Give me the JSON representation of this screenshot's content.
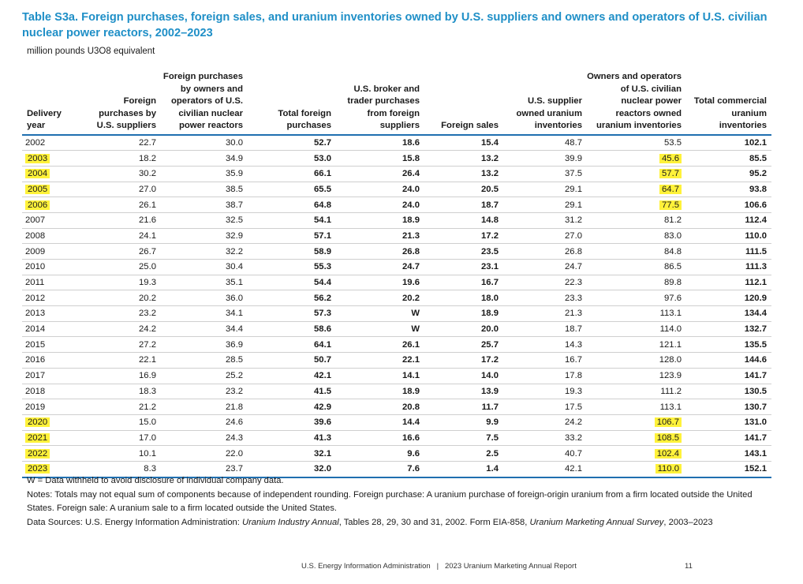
{
  "title": "Table S3a. Foreign purchases, foreign sales, and uranium inventories owned by U.S. suppliers and owners and operators of U.S. civilian nuclear power reactors, 2002–2023",
  "units": "million pounds U3O8 equivalent",
  "headers": {
    "year": "Delivery year",
    "fp_suppliers": "Foreign purchases by U.S. suppliers",
    "fp_owners": "Foreign purchases by owners and operators of U.S. civilian nuclear power reactors",
    "total_fp": "Total foreign purchases",
    "broker": "U.S. broker and trader purchases from foreign suppliers",
    "foreign_sales": "Foreign sales",
    "supplier_inv": "U.S. supplier owned uranium inventories",
    "owner_inv": "Owners and operators of U.S. civilian nuclear power reactors owned uranium inventories",
    "total_inv": "Total commercial uranium inventories"
  },
  "highlight_color": "#fff23a",
  "rows": [
    {
      "year": "2002",
      "c1": "22.7",
      "c2": "30.0",
      "c3": "52.7",
      "c4": "18.6",
      "c5": "15.4",
      "c6": "48.7",
      "c7": "53.5",
      "c8": "102.1",
      "hy": false,
      "hi": false
    },
    {
      "year": "2003",
      "c1": "18.2",
      "c2": "34.9",
      "c3": "53.0",
      "c4": "15.8",
      "c5": "13.2",
      "c6": "39.9",
      "c7": "45.6",
      "c8": "85.5",
      "hy": true,
      "hi": true
    },
    {
      "year": "2004",
      "c1": "30.2",
      "c2": "35.9",
      "c3": "66.1",
      "c4": "26.4",
      "c5": "13.2",
      "c6": "37.5",
      "c7": "57.7",
      "c8": "95.2",
      "hy": true,
      "hi": true
    },
    {
      "year": "2005",
      "c1": "27.0",
      "c2": "38.5",
      "c3": "65.5",
      "c4": "24.0",
      "c5": "20.5",
      "c6": "29.1",
      "c7": "64.7",
      "c8": "93.8",
      "hy": true,
      "hi": true
    },
    {
      "year": "2006",
      "c1": "26.1",
      "c2": "38.7",
      "c3": "64.8",
      "c4": "24.0",
      "c5": "18.7",
      "c6": "29.1",
      "c7": "77.5",
      "c8": "106.6",
      "hy": true,
      "hi": true
    },
    {
      "year": "2007",
      "c1": "21.6",
      "c2": "32.5",
      "c3": "54.1",
      "c4": "18.9",
      "c5": "14.8",
      "c6": "31.2",
      "c7": "81.2",
      "c8": "112.4",
      "hy": false,
      "hi": false
    },
    {
      "year": "2008",
      "c1": "24.1",
      "c2": "32.9",
      "c3": "57.1",
      "c4": "21.3",
      "c5": "17.2",
      "c6": "27.0",
      "c7": "83.0",
      "c8": "110.0",
      "hy": false,
      "hi": false
    },
    {
      "year": "2009",
      "c1": "26.7",
      "c2": "32.2",
      "c3": "58.9",
      "c4": "26.8",
      "c5": "23.5",
      "c6": "26.8",
      "c7": "84.8",
      "c8": "111.5",
      "hy": false,
      "hi": false
    },
    {
      "year": "2010",
      "c1": "25.0",
      "c2": "30.4",
      "c3": "55.3",
      "c4": "24.7",
      "c5": "23.1",
      "c6": "24.7",
      "c7": "86.5",
      "c8": "111.3",
      "hy": false,
      "hi": false
    },
    {
      "year": "2011",
      "c1": "19.3",
      "c2": "35.1",
      "c3": "54.4",
      "c4": "19.6",
      "c5": "16.7",
      "c6": "22.3",
      "c7": "89.8",
      "c8": "112.1",
      "hy": false,
      "hi": false
    },
    {
      "year": "2012",
      "c1": "20.2",
      "c2": "36.0",
      "c3": "56.2",
      "c4": "20.2",
      "c5": "18.0",
      "c6": "23.3",
      "c7": "97.6",
      "c8": "120.9",
      "hy": false,
      "hi": false
    },
    {
      "year": "2013",
      "c1": "23.2",
      "c2": "34.1",
      "c3": "57.3",
      "c4": "W",
      "c5": "18.9",
      "c6": "21.3",
      "c7": "113.1",
      "c8": "134.4",
      "hy": false,
      "hi": false
    },
    {
      "year": "2014",
      "c1": "24.2",
      "c2": "34.4",
      "c3": "58.6",
      "c4": "W",
      "c5": "20.0",
      "c6": "18.7",
      "c7": "114.0",
      "c8": "132.7",
      "hy": false,
      "hi": false
    },
    {
      "year": "2015",
      "c1": "27.2",
      "c2": "36.9",
      "c3": "64.1",
      "c4": "26.1",
      "c5": "25.7",
      "c6": "14.3",
      "c7": "121.1",
      "c8": "135.5",
      "hy": false,
      "hi": false
    },
    {
      "year": "2016",
      "c1": "22.1",
      "c2": "28.5",
      "c3": "50.7",
      "c4": "22.1",
      "c5": "17.2",
      "c6": "16.7",
      "c7": "128.0",
      "c8": "144.6",
      "hy": false,
      "hi": false
    },
    {
      "year": "2017",
      "c1": "16.9",
      "c2": "25.2",
      "c3": "42.1",
      "c4": "14.1",
      "c5": "14.0",
      "c6": "17.8",
      "c7": "123.9",
      "c8": "141.7",
      "hy": false,
      "hi": false
    },
    {
      "year": "2018",
      "c1": "18.3",
      "c2": "23.2",
      "c3": "41.5",
      "c4": "18.9",
      "c5": "13.9",
      "c6": "19.3",
      "c7": "111.2",
      "c8": "130.5",
      "hy": false,
      "hi": false
    },
    {
      "year": "2019",
      "c1": "21.2",
      "c2": "21.8",
      "c3": "42.9",
      "c4": "20.8",
      "c5": "11.7",
      "c6": "17.5",
      "c7": "113.1",
      "c8": "130.7",
      "hy": false,
      "hi": false
    },
    {
      "year": "2020",
      "c1": "15.0",
      "c2": "24.6",
      "c3": "39.6",
      "c4": "14.4",
      "c5": "9.9",
      "c6": "24.2",
      "c7": "106.7",
      "c8": "131.0",
      "hy": true,
      "hi": true
    },
    {
      "year": "2021",
      "c1": "17.0",
      "c2": "24.3",
      "c3": "41.3",
      "c4": "16.6",
      "c5": "7.5",
      "c6": "33.2",
      "c7": "108.5",
      "c8": "141.7",
      "hy": true,
      "hi": true
    },
    {
      "year": "2022",
      "c1": "10.1",
      "c2": "22.0",
      "c3": "32.1",
      "c4": "9.6",
      "c5": "2.5",
      "c6": "40.7",
      "c7": "102.4",
      "c8": "143.1",
      "hy": true,
      "hi": true
    },
    {
      "year": "2023",
      "c1": "8.3",
      "c2": "23.7",
      "c3": "32.0",
      "c4": "7.6",
      "c5": "1.4",
      "c6": "42.1",
      "c7": "110.0",
      "c8": "152.1",
      "hy": true,
      "hi": true
    }
  ],
  "notes": {
    "w_note": "W = Data withheld to avoid disclosure of individual company data.",
    "notes_text": "Notes: Totals may not equal sum of components because of independent rounding. Foreign purchase: A uranium purchase of foreign-origin uranium from a firm located outside the United States. Foreign sale: A uranium sale to a firm located outside the United States.",
    "sources_prefix": "Data Sources: U.S. Energy Information Administration: ",
    "source_1": "Uranium Industry Annual",
    "sources_mid": ", Tables 28, 29, 30 and 31, 2002. Form EIA-858, ",
    "source_2": "Uranium Marketing Annual Survey",
    "sources_suffix": ", 2003–2023"
  },
  "footer": {
    "agency": "U.S. Energy Information Administration   |   2023 Uranium Marketing Annual Report",
    "page": "11"
  }
}
